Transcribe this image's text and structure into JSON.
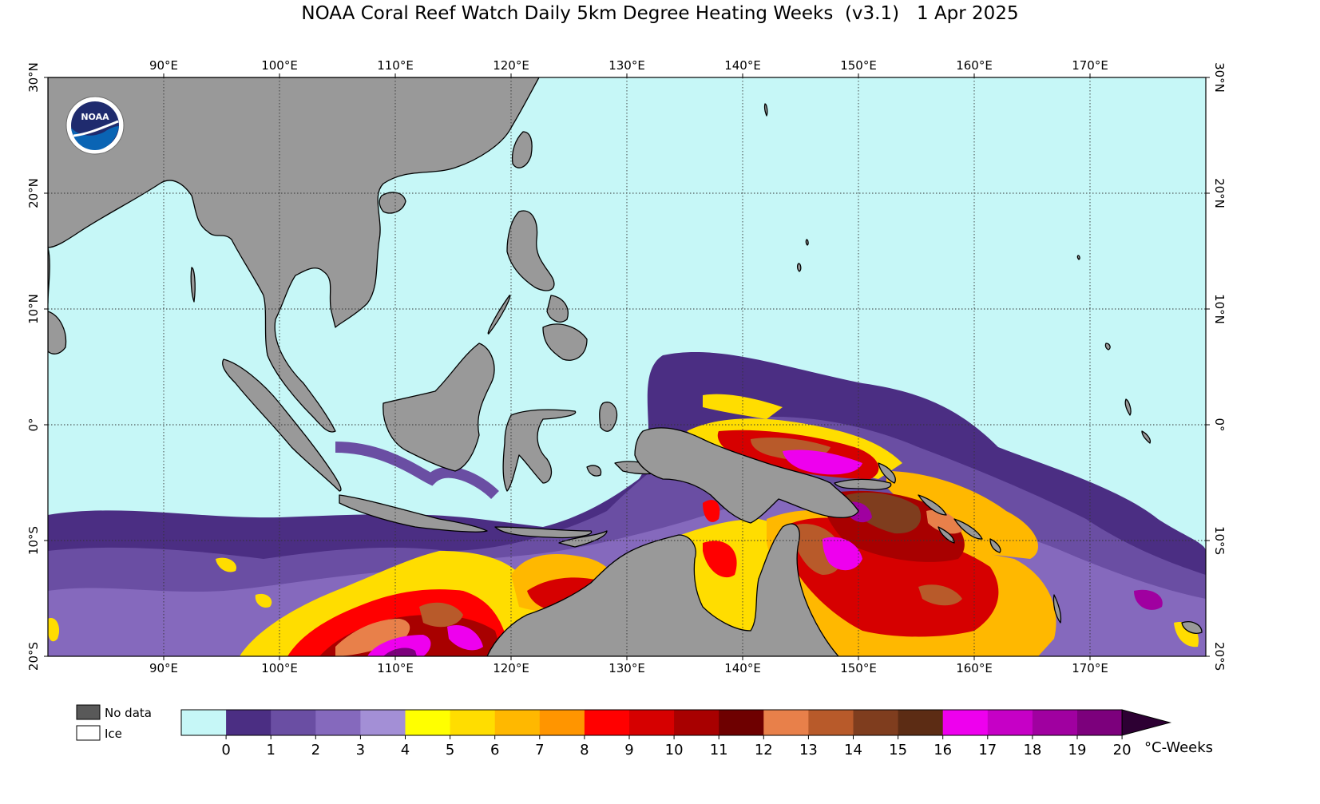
{
  "title": "NOAA Coral Reef Watch Daily 5km Degree Heating Weeks  (v3.1)   1 Apr 2025",
  "map": {
    "lon_range": [
      80,
      180
    ],
    "lat_range": [
      -20,
      30
    ],
    "lon_ticks": [
      "90°E",
      "100°E",
      "110°E",
      "120°E",
      "130°E",
      "140°E",
      "150°E",
      "160°E",
      "170°E"
    ],
    "lon_tick_values": [
      90,
      100,
      110,
      120,
      130,
      140,
      150,
      160,
      170
    ],
    "lat_ticks": [
      "20°S",
      "10°S",
      "0°",
      "10°N",
      "20°N",
      "30°N"
    ],
    "lat_tick_values": [
      -20,
      -10,
      0,
      10,
      20,
      30
    ],
    "ocean_color": "#c6f7f7",
    "land_color": "#999999",
    "logo_text": "NOAA"
  },
  "legend": {
    "no_data_label": "No data",
    "no_data_color": "#595959",
    "ice_label": "Ice",
    "ice_color": "#ffffff",
    "unit_label": "°C-Weeks",
    "tick_labels": [
      "0",
      "1",
      "2",
      "3",
      "4",
      "5",
      "6",
      "7",
      "8",
      "9",
      "10",
      "11",
      "12",
      "13",
      "14",
      "15",
      "16",
      "17",
      "18",
      "19",
      "20"
    ],
    "colors": [
      "#c6f7f7",
      "#4b2e83",
      "#6a4ea3",
      "#8569bd",
      "#a38fd6",
      "#ffff00",
      "#ffdd00",
      "#ffb800",
      "#ff9500",
      "#ff0000",
      "#d60000",
      "#a80000",
      "#6e0000",
      "#e8804a",
      "#b85a2a",
      "#7f3d1e",
      "#5c2c14",
      "#ee00ee",
      "#c600c6",
      "#a000a0",
      "#7c007c"
    ],
    "extend_color": "#2d0033"
  }
}
